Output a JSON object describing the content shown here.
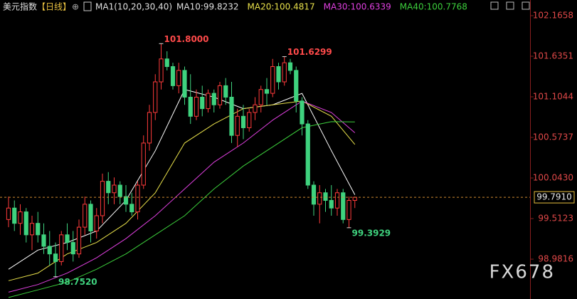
{
  "chart_data": {
    "type": "candlestick",
    "title": "美元指数",
    "period": "【日线】",
    "indicator": "MA1(10,20,30,40)",
    "watermark": "FX678",
    "ylim": [
      98.4607,
      102.3705
    ],
    "yticks": [
      {
        "value": 98.9816,
        "label": "98.9816"
      },
      99.5123,
      {
        "value": 100.043,
        "label": "100.0430"
      },
      100.5737,
      101.1044,
      101.6351,
      102.1658
    ],
    "up_color": "#ff3b3b",
    "down_color": "#3fd27e",
    "candles": [
      {
        "o": 99.5,
        "h": 99.8,
        "l": 99.4,
        "c": 99.65
      },
      {
        "o": 99.65,
        "h": 99.75,
        "l": 99.35,
        "c": 99.45
      },
      {
        "o": 99.45,
        "h": 99.7,
        "l": 99.3,
        "c": 99.6
      },
      {
        "o": 99.6,
        "h": 99.65,
        "l": 99.2,
        "c": 99.3
      },
      {
        "o": 99.3,
        "h": 99.55,
        "l": 99.1,
        "c": 99.45
      },
      {
        "o": 99.45,
        "h": 99.6,
        "l": 99.2,
        "c": 99.3
      },
      {
        "o": 99.3,
        "h": 99.45,
        "l": 99.05,
        "c": 99.15
      },
      {
        "o": 99.15,
        "h": 99.35,
        "l": 98.9,
        "c": 99.05
      },
      {
        "o": 99.05,
        "h": 99.2,
        "l": 98.752,
        "c": 98.95
      },
      {
        "o": 98.95,
        "h": 99.35,
        "l": 98.9,
        "c": 99.3
      },
      {
        "o": 99.3,
        "h": 99.45,
        "l": 99.1,
        "c": 99.2
      },
      {
        "o": 99.2,
        "h": 99.35,
        "l": 98.95,
        "c": 99.05
      },
      {
        "o": 99.05,
        "h": 99.5,
        "l": 99.0,
        "c": 99.4
      },
      {
        "o": 99.4,
        "h": 99.8,
        "l": 99.3,
        "c": 99.7
      },
      {
        "o": 99.7,
        "h": 99.75,
        "l": 99.2,
        "c": 99.35
      },
      {
        "o": 99.35,
        "h": 99.65,
        "l": 99.25,
        "c": 99.55
      },
      {
        "o": 99.55,
        "h": 100.1,
        "l": 99.45,
        "c": 100.0
      },
      {
        "o": 100.0,
        "h": 100.12,
        "l": 99.7,
        "c": 99.85
      },
      {
        "o": 99.85,
        "h": 100.05,
        "l": 99.7,
        "c": 99.95
      },
      {
        "o": 99.95,
        "h": 100.0,
        "l": 99.7,
        "c": 99.8
      },
      {
        "o": 99.8,
        "h": 99.95,
        "l": 99.6,
        "c": 99.7
      },
      {
        "o": 99.7,
        "h": 99.85,
        "l": 99.55,
        "c": 99.6
      },
      {
        "o": 99.6,
        "h": 100.0,
        "l": 99.5,
        "c": 99.95
      },
      {
        "o": 99.95,
        "h": 100.6,
        "l": 99.9,
        "c": 100.5
      },
      {
        "o": 100.5,
        "h": 101.0,
        "l": 100.4,
        "c": 100.9
      },
      {
        "o": 100.9,
        "h": 101.4,
        "l": 100.8,
        "c": 101.3
      },
      {
        "o": 101.3,
        "h": 101.8,
        "l": 101.2,
        "c": 101.6
      },
      {
        "o": 101.6,
        "h": 101.7,
        "l": 101.45,
        "c": 101.5
      },
      {
        "o": 101.5,
        "h": 101.55,
        "l": 101.2,
        "c": 101.25
      },
      {
        "o": 101.25,
        "h": 101.55,
        "l": 101.15,
        "c": 101.45
      },
      {
        "o": 101.45,
        "h": 101.5,
        "l": 101.0,
        "c": 101.1
      },
      {
        "o": 101.1,
        "h": 101.4,
        "l": 100.75,
        "c": 100.85
      },
      {
        "o": 100.85,
        "h": 101.2,
        "l": 100.8,
        "c": 101.1
      },
      {
        "o": 101.1,
        "h": 101.25,
        "l": 100.85,
        "c": 100.95
      },
      {
        "o": 100.95,
        "h": 101.2,
        "l": 100.9,
        "c": 101.15
      },
      {
        "o": 101.15,
        "h": 101.2,
        "l": 100.9,
        "c": 101.0
      },
      {
        "o": 101.0,
        "h": 101.3,
        "l": 100.95,
        "c": 101.25
      },
      {
        "o": 101.25,
        "h": 101.35,
        "l": 101.0,
        "c": 101.1
      },
      {
        "o": 101.1,
        "h": 101.3,
        "l": 100.5,
        "c": 100.6
      },
      {
        "o": 100.6,
        "h": 100.95,
        "l": 100.45,
        "c": 100.85
      },
      {
        "o": 100.85,
        "h": 101.0,
        "l": 100.55,
        "c": 100.7
      },
      {
        "o": 100.7,
        "h": 100.95,
        "l": 100.65,
        "c": 100.9
      },
      {
        "o": 100.9,
        "h": 101.1,
        "l": 100.8,
        "c": 101.0
      },
      {
        "o": 101.0,
        "h": 101.25,
        "l": 100.9,
        "c": 101.2
      },
      {
        "o": 101.2,
        "h": 101.35,
        "l": 101.0,
        "c": 101.15
      },
      {
        "o": 101.15,
        "h": 101.6,
        "l": 101.1,
        "c": 101.5
      },
      {
        "o": 101.5,
        "h": 101.55,
        "l": 101.2,
        "c": 101.3
      },
      {
        "o": 101.3,
        "h": 101.6299,
        "l": 101.25,
        "c": 101.55
      },
      {
        "o": 101.55,
        "h": 101.6,
        "l": 101.4,
        "c": 101.45
      },
      {
        "o": 101.45,
        "h": 101.5,
        "l": 100.9,
        "c": 101.05
      },
      {
        "o": 101.05,
        "h": 101.1,
        "l": 100.6,
        "c": 100.75
      },
      {
        "o": 100.75,
        "h": 100.8,
        "l": 99.9,
        "c": 99.95
      },
      {
        "o": 99.95,
        "h": 100.0,
        "l": 99.55,
        "c": 99.7
      },
      {
        "o": 99.7,
        "h": 99.95,
        "l": 99.45,
        "c": 99.85
      },
      {
        "o": 99.85,
        "h": 99.9,
        "l": 99.6,
        "c": 99.75
      },
      {
        "o": 99.75,
        "h": 99.95,
        "l": 99.55,
        "c": 99.65
      },
      {
        "o": 99.65,
        "h": 99.9,
        "l": 99.55,
        "c": 99.85
      },
      {
        "o": 99.85,
        "h": 99.9,
        "l": 99.45,
        "c": 99.5
      },
      {
        "o": 99.5,
        "h": 99.8,
        "l": 99.3929,
        "c": 99.75
      },
      {
        "o": 99.75,
        "h": 99.8,
        "l": 99.65,
        "c": 99.791
      }
    ],
    "last_price": {
      "value": 99.791,
      "label": "99.7910"
    },
    "annotations": [
      {
        "value": 101.8,
        "label": "101.8000",
        "kind": "high"
      },
      {
        "value": 101.6299,
        "kind": "high"
      },
      {
        "value": 99.3929,
        "kind": "low"
      },
      {
        "value": 98.752,
        "label": "98.7520",
        "kind": "low"
      }
    ],
    "series": [
      {
        "name": "MA10",
        "legend": "MA10:99.8232",
        "color": "#ffffff",
        "x": [
          0,
          5,
          10,
          15,
          20,
          25,
          30,
          35,
          40,
          45,
          50,
          55,
          59
        ],
        "values": [
          98.85,
          99.1,
          99.2,
          99.35,
          99.75,
          100.4,
          101.2,
          101.1,
          100.95,
          101.0,
          101.15,
          100.4,
          99.8232
        ]
      },
      {
        "name": "MA20",
        "legend": "MA20:100.4817",
        "color": "#e8e04a",
        "x": [
          0,
          5,
          10,
          15,
          20,
          25,
          30,
          35,
          40,
          45,
          50,
          55,
          59
        ],
        "values": [
          98.7,
          98.8,
          99.05,
          99.2,
          99.45,
          99.85,
          100.5,
          100.75,
          100.95,
          101.0,
          101.05,
          100.85,
          100.4817
        ]
      },
      {
        "name": "MA30",
        "legend": "MA30:100.6339",
        "color": "#e040e0",
        "x": [
          0,
          5,
          10,
          15,
          20,
          25,
          30,
          35,
          40,
          45,
          50,
          55,
          59
        ],
        "values": [
          98.55,
          98.65,
          98.8,
          99.0,
          99.25,
          99.55,
          99.9,
          100.25,
          100.5,
          100.8,
          101.05,
          100.9,
          100.6339
        ]
      },
      {
        "name": "MA40",
        "legend": "MA40:100.7768",
        "color": "#3ccf3c",
        "x": [
          0,
          5,
          10,
          15,
          20,
          25,
          30,
          35,
          40,
          45,
          50,
          55,
          59
        ],
        "values": [
          98.48,
          98.58,
          98.68,
          98.85,
          99.05,
          99.3,
          99.55,
          99.9,
          100.2,
          100.45,
          100.7,
          100.78,
          100.7768
        ]
      }
    ]
  }
}
